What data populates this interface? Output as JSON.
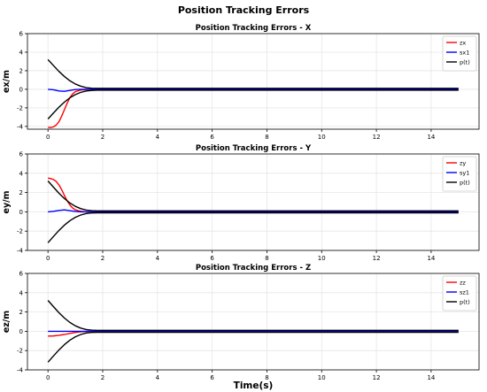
{
  "figure_title": "Position Tracking Errors",
  "colors": {
    "error": "#ff0000",
    "sliding": "#0000ff",
    "bound": "#000000",
    "grid": "#e6e6e6"
  },
  "chart_data": [
    {
      "type": "line",
      "title": "Position Tracking Errors - X",
      "xlabel": "",
      "ylabel": "ex/m",
      "xlim": [
        -0.75,
        15.75
      ],
      "ylim": [
        -4.3,
        6
      ],
      "xticks": [
        "0",
        "2",
        "4",
        "6",
        "8",
        "10",
        "12",
        "14"
      ],
      "yticks": [
        "-4",
        "-2",
        "0",
        "2",
        "4",
        "6"
      ],
      "grid": true,
      "legend": "top-right",
      "series": [
        {
          "name": "zx",
          "color": "#ff0000",
          "x": [
            0,
            0.1,
            0.2,
            0.3,
            0.4,
            0.5,
            0.6,
            0.7,
            0.8,
            0.9,
            1.0,
            1.2,
            1.4,
            1.6,
            1.8,
            2,
            4,
            8,
            12,
            15
          ],
          "y": [
            -4.1,
            -4.12,
            -4.05,
            -3.85,
            -3.5,
            -2.9,
            -2.2,
            -1.5,
            -0.9,
            -0.5,
            -0.25,
            -0.08,
            -0.02,
            0.0,
            0.0,
            0.0,
            0.0,
            0.0,
            0.0,
            0.0
          ]
        },
        {
          "name": "sx1",
          "color": "#0000ff",
          "x": [
            0,
            0.2,
            0.4,
            0.6,
            0.8,
            1.0,
            1.2,
            1.4,
            2,
            4,
            8,
            12,
            15
          ],
          "y": [
            0.0,
            -0.05,
            -0.18,
            -0.22,
            -0.12,
            -0.03,
            0.0,
            0.0,
            0.0,
            0.0,
            0.0,
            0.0,
            0.0
          ]
        },
        {
          "name": "p(t)",
          "color": "#000000",
          "x": [
            0,
            0.2,
            0.4,
            0.6,
            0.8,
            1.0,
            1.2,
            1.4,
            1.6,
            1.8,
            2.0,
            15
          ],
          "y": [
            3.2,
            2.56,
            1.93,
            1.38,
            0.92,
            0.57,
            0.33,
            0.18,
            0.12,
            0.1,
            0.1,
            0.1
          ]
        },
        {
          "name": "",
          "color": "#000000",
          "x": [
            0,
            0.2,
            0.4,
            0.6,
            0.8,
            1.0,
            1.2,
            1.4,
            1.6,
            1.8,
            2.0,
            15
          ],
          "y": [
            -3.2,
            -2.56,
            -1.93,
            -1.38,
            -0.92,
            -0.57,
            -0.33,
            -0.18,
            -0.12,
            -0.1,
            -0.1,
            -0.1
          ]
        }
      ]
    },
    {
      "type": "line",
      "title": "Position Tracking Errors - Y",
      "xlabel": "",
      "ylabel": "ey/m",
      "xlim": [
        -0.75,
        15.75
      ],
      "ylim": [
        -4,
        6
      ],
      "xticks": [
        "0",
        "2",
        "4",
        "6",
        "8",
        "10",
        "12",
        "14"
      ],
      "yticks": [
        "-4",
        "-2",
        "0",
        "2",
        "4",
        "6"
      ],
      "grid": true,
      "legend": "top-right",
      "series": [
        {
          "name": "zy",
          "color": "#ff0000",
          "x": [
            0,
            0.1,
            0.2,
            0.3,
            0.4,
            0.5,
            0.6,
            0.7,
            0.8,
            0.9,
            1.0,
            1.2,
            1.4,
            1.6,
            2,
            4,
            8,
            12,
            15
          ],
          "y": [
            3.5,
            3.45,
            3.35,
            3.15,
            2.8,
            2.3,
            1.7,
            1.15,
            0.7,
            0.4,
            0.2,
            0.06,
            0.0,
            0.0,
            0.0,
            0.0,
            0.0,
            0.0,
            0.0
          ]
        },
        {
          "name": "sy1",
          "color": "#0000ff",
          "x": [
            0,
            0.2,
            0.4,
            0.6,
            0.8,
            1.0,
            1.2,
            1.4,
            2,
            4,
            8,
            12,
            15
          ],
          "y": [
            0.0,
            0.05,
            0.15,
            0.2,
            0.12,
            0.04,
            0.0,
            0.0,
            0.0,
            0.0,
            0.0,
            0.0,
            0.0
          ]
        },
        {
          "name": "p(t)",
          "color": "#000000",
          "x": [
            0,
            0.2,
            0.4,
            0.6,
            0.8,
            1.0,
            1.2,
            1.4,
            1.6,
            1.8,
            2.0,
            15
          ],
          "y": [
            3.2,
            2.56,
            1.93,
            1.38,
            0.92,
            0.57,
            0.33,
            0.18,
            0.12,
            0.1,
            0.1,
            0.1
          ]
        },
        {
          "name": "",
          "color": "#000000",
          "x": [
            0,
            0.2,
            0.4,
            0.6,
            0.8,
            1.0,
            1.2,
            1.4,
            1.6,
            1.8,
            2.0,
            15
          ],
          "y": [
            -3.2,
            -2.56,
            -1.93,
            -1.38,
            -0.92,
            -0.57,
            -0.33,
            -0.18,
            -0.12,
            -0.1,
            -0.1,
            -0.1
          ]
        }
      ]
    },
    {
      "type": "line",
      "title": "Position Tracking Errors - Z",
      "xlabel": "Time(s)",
      "ylabel": "ez/m",
      "xlim": [
        -0.75,
        15.75
      ],
      "ylim": [
        -4,
        6
      ],
      "xticks": [
        "0",
        "2",
        "4",
        "6",
        "8",
        "10",
        "12",
        "14"
      ],
      "yticks": [
        "-4",
        "-2",
        "0",
        "2",
        "4",
        "6"
      ],
      "grid": true,
      "legend": "top-right",
      "series": [
        {
          "name": "zz",
          "color": "#ff0000",
          "x": [
            0,
            0.2,
            0.4,
            0.6,
            0.8,
            1.0,
            1.2,
            1.4,
            1.6,
            2,
            4,
            8,
            12,
            15
          ],
          "y": [
            -0.5,
            -0.48,
            -0.42,
            -0.33,
            -0.22,
            -0.12,
            -0.05,
            -0.01,
            0.0,
            0.0,
            0.0,
            0.0,
            0.0,
            0.0
          ]
        },
        {
          "name": "sz1",
          "color": "#0000ff",
          "x": [
            0,
            0.5,
            1.0,
            2,
            4,
            8,
            12,
            15
          ],
          "y": [
            0.0,
            0.0,
            0.0,
            0.0,
            0.0,
            0.0,
            0.0,
            0.0
          ]
        },
        {
          "name": "p(t)",
          "color": "#000000",
          "x": [
            0,
            0.2,
            0.4,
            0.6,
            0.8,
            1.0,
            1.2,
            1.4,
            1.6,
            1.8,
            2.0,
            15
          ],
          "y": [
            3.2,
            2.56,
            1.93,
            1.38,
            0.92,
            0.57,
            0.33,
            0.18,
            0.12,
            0.1,
            0.1,
            0.1
          ]
        },
        {
          "name": "",
          "color": "#000000",
          "x": [
            0,
            0.2,
            0.4,
            0.6,
            0.8,
            1.0,
            1.2,
            1.4,
            1.6,
            1.8,
            2.0,
            15
          ],
          "y": [
            -3.2,
            -2.56,
            -1.93,
            -1.38,
            -0.92,
            -0.57,
            -0.33,
            -0.18,
            -0.12,
            -0.1,
            -0.1,
            -0.1
          ]
        }
      ]
    }
  ]
}
